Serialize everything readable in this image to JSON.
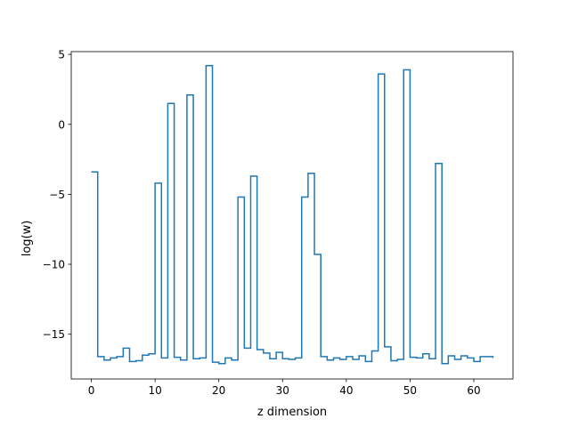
{
  "chart_data": {
    "type": "line",
    "drawstyle": "steps-post",
    "title": "",
    "xlabel": "z dimension",
    "ylabel": "log(w)",
    "xlim": [
      -3.15,
      66.15
    ],
    "ylim": [
      -18.2,
      5.2
    ],
    "xticks": [
      0,
      10,
      20,
      30,
      40,
      50,
      60
    ],
    "yticks": [
      5,
      0,
      -5,
      -10,
      -15
    ],
    "grid": false,
    "legend": "none",
    "series": [
      {
        "color": "#1f77b4",
        "x": [
          0,
          1,
          2,
          3,
          4,
          5,
          6,
          7,
          8,
          9,
          10,
          11,
          12,
          13,
          14,
          15,
          16,
          17,
          18,
          19,
          20,
          21,
          22,
          23,
          24,
          25,
          26,
          27,
          28,
          29,
          30,
          31,
          32,
          33,
          34,
          35,
          36,
          37,
          38,
          39,
          40,
          41,
          42,
          43,
          44,
          45,
          46,
          47,
          48,
          49,
          50,
          51,
          52,
          53,
          54,
          55,
          56,
          57,
          58,
          59,
          60,
          61,
          62,
          63
        ],
        "values": [
          -3.4,
          -16.6,
          -16.85,
          -16.7,
          -16.6,
          -16.0,
          -16.95,
          -16.9,
          -16.5,
          -16.4,
          -4.2,
          -16.7,
          1.5,
          -16.65,
          -16.85,
          2.1,
          -16.75,
          -16.7,
          4.2,
          -17.0,
          -17.1,
          -16.7,
          -16.85,
          -5.2,
          -16.0,
          -3.7,
          -16.1,
          -16.35,
          -16.75,
          -16.3,
          -16.75,
          -16.8,
          -16.7,
          -5.2,
          -3.5,
          -9.3,
          -16.6,
          -16.85,
          -16.7,
          -16.8,
          -16.6,
          -16.8,
          -16.55,
          -16.95,
          -16.2,
          3.6,
          -15.9,
          -16.9,
          -16.8,
          3.9,
          -16.65,
          -16.7,
          -16.4,
          -16.75,
          -2.8,
          -17.1,
          -16.55,
          -16.8,
          -16.55,
          -16.7,
          -16.95,
          -16.6,
          -16.6,
          -16.7
        ]
      }
    ]
  }
}
